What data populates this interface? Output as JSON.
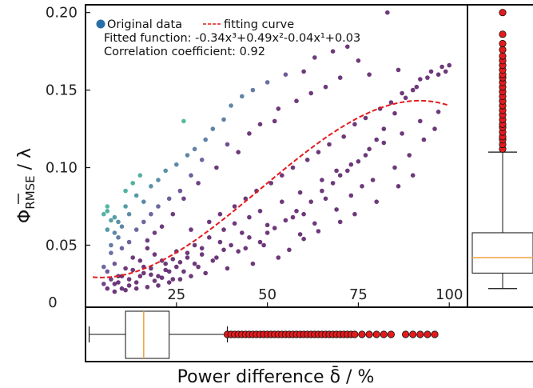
{
  "chart_data": {
    "type": "scatter",
    "xlabel": "Power difference δ̄ / %",
    "ylabel_main": "Φ",
    "ylabel_sub": "RMSE",
    "ylabel_tail": " / λ",
    "xlim": [
      0,
      105
    ],
    "ylim": [
      0.01,
      0.205
    ],
    "x_ticks": [
      25,
      50,
      75,
      100
    ],
    "y_ticks": [
      0.05,
      0.1,
      0.15,
      0.2
    ],
    "y_tick_labels": [
      "0.05",
      "0.10",
      "0.15",
      "0.20"
    ],
    "origin_label": "0",
    "legend": {
      "series_label": "Original data",
      "curve_label": "fitting curve",
      "fit_text": "Fitted function: -0.34x³+0.49x²-0.04x¹+0.03",
      "corr_text": "Correlation coefficient: 0.92"
    },
    "fit": {
      "coeffs": [
        -0.34,
        0.49,
        -0.04,
        0.03
      ],
      "x_scale": 100,
      "x_range": [
        2,
        100
      ]
    },
    "points": [
      [
        18,
        0.031
      ],
      [
        22,
        0.034
      ],
      [
        12,
        0.028
      ],
      [
        8,
        0.025
      ],
      [
        15,
        0.04
      ],
      [
        25,
        0.036
      ],
      [
        28,
        0.045
      ],
      [
        6,
        0.033
      ],
      [
        10,
        0.022
      ],
      [
        14,
        0.026
      ],
      [
        20,
        0.03
      ],
      [
        16,
        0.036
      ],
      [
        24,
        0.041
      ],
      [
        30,
        0.038
      ],
      [
        9,
        0.03
      ],
      [
        11,
        0.035
      ],
      [
        13,
        0.042
      ],
      [
        17,
        0.048
      ],
      [
        19,
        0.027
      ],
      [
        21,
        0.029
      ],
      [
        23,
        0.033
      ],
      [
        26,
        0.039
      ],
      [
        32,
        0.044
      ],
      [
        35,
        0.04
      ],
      [
        38,
        0.047
      ],
      [
        40,
        0.05
      ],
      [
        42,
        0.046
      ],
      [
        45,
        0.055
      ],
      [
        48,
        0.052
      ],
      [
        50,
        0.058
      ],
      [
        52,
        0.061
      ],
      [
        55,
        0.066
      ],
      [
        58,
        0.072
      ],
      [
        60,
        0.07
      ],
      [
        62,
        0.078
      ],
      [
        65,
        0.085
      ],
      [
        68,
        0.09
      ],
      [
        70,
        0.095
      ],
      [
        72,
        0.098
      ],
      [
        75,
        0.104
      ],
      [
        78,
        0.112
      ],
      [
        80,
        0.118
      ],
      [
        82,
        0.125
      ],
      [
        85,
        0.135
      ],
      [
        88,
        0.145
      ],
      [
        90,
        0.15
      ],
      [
        92,
        0.157
      ],
      [
        95,
        0.162
      ],
      [
        98,
        0.165
      ],
      [
        100,
        0.166
      ],
      [
        5,
        0.036
      ],
      [
        7,
        0.045
      ],
      [
        9,
        0.055
      ],
      [
        10,
        0.062
      ],
      [
        12,
        0.07
      ],
      [
        8,
        0.068
      ],
      [
        6,
        0.072
      ],
      [
        11,
        0.085
      ],
      [
        13,
        0.09
      ],
      [
        15,
        0.095
      ],
      [
        14,
        0.082
      ],
      [
        16,
        0.078
      ],
      [
        18,
        0.088
      ],
      [
        20,
        0.092
      ],
      [
        22,
        0.098
      ],
      [
        25,
        0.102
      ],
      [
        28,
        0.108
      ],
      [
        30,
        0.112
      ],
      [
        33,
        0.118
      ],
      [
        27,
        0.13
      ],
      [
        35,
        0.125
      ],
      [
        38,
        0.131
      ],
      [
        40,
        0.14
      ],
      [
        43,
        0.146
      ],
      [
        46,
        0.15
      ],
      [
        50,
        0.155
      ],
      [
        55,
        0.16
      ],
      [
        60,
        0.162
      ],
      [
        63,
        0.171
      ],
      [
        68,
        0.175
      ],
      [
        72,
        0.178
      ],
      [
        83,
        0.2
      ],
      [
        75,
        0.169
      ],
      [
        66,
        0.152
      ],
      [
        58,
        0.143
      ],
      [
        52,
        0.13
      ],
      [
        45,
        0.122
      ],
      [
        42,
        0.11
      ],
      [
        36,
        0.1
      ],
      [
        31,
        0.09
      ],
      [
        27,
        0.08
      ],
      [
        24,
        0.07
      ],
      [
        21,
        0.062
      ],
      [
        19,
        0.058
      ],
      [
        17,
        0.053
      ],
      [
        29,
        0.06
      ],
      [
        34,
        0.065
      ],
      [
        37,
        0.07
      ],
      [
        41,
        0.075
      ],
      [
        44,
        0.08
      ],
      [
        47,
        0.085
      ],
      [
        51,
        0.09
      ],
      [
        54,
        0.095
      ],
      [
        57,
        0.1
      ],
      [
        61,
        0.105
      ],
      [
        64,
        0.11
      ],
      [
        67,
        0.115
      ],
      [
        71,
        0.12
      ],
      [
        74,
        0.128
      ],
      [
        77,
        0.132
      ],
      [
        81,
        0.138
      ],
      [
        84,
        0.142
      ],
      [
        87,
        0.148
      ],
      [
        91,
        0.152
      ],
      [
        94,
        0.158
      ],
      [
        97,
        0.16
      ],
      [
        99,
        0.162
      ],
      [
        56,
        0.047
      ],
      [
        60,
        0.054
      ],
      [
        64,
        0.059
      ],
      [
        70,
        0.065
      ],
      [
        74,
        0.07
      ],
      [
        80,
        0.078
      ],
      [
        86,
        0.088
      ],
      [
        90,
        0.095
      ],
      [
        53,
        0.042
      ],
      [
        46,
        0.038
      ],
      [
        39,
        0.035
      ],
      [
        33,
        0.032
      ],
      [
        29,
        0.03
      ],
      [
        26,
        0.028
      ],
      [
        23,
        0.026
      ],
      [
        20,
        0.024
      ],
      [
        17,
        0.023
      ],
      [
        14,
        0.022
      ],
      [
        11,
        0.021
      ],
      [
        8,
        0.02
      ],
      [
        6,
        0.022
      ],
      [
        5,
        0.025
      ],
      [
        7,
        0.028
      ],
      [
        9,
        0.026
      ],
      [
        12,
        0.024
      ],
      [
        15,
        0.03
      ],
      [
        18,
        0.035
      ],
      [
        22,
        0.038
      ],
      [
        24,
        0.028
      ],
      [
        27,
        0.033
      ],
      [
        31,
        0.036
      ],
      [
        36,
        0.042
      ],
      [
        44,
        0.048
      ],
      [
        49,
        0.05
      ],
      [
        59,
        0.057
      ],
      [
        63,
        0.064
      ],
      [
        69,
        0.073
      ],
      [
        73,
        0.082
      ],
      [
        79,
        0.092
      ],
      [
        85,
        0.1
      ],
      [
        89,
        0.108
      ],
      [
        93,
        0.118
      ],
      [
        96,
        0.125
      ],
      [
        76,
        0.088
      ],
      [
        66,
        0.08
      ],
      [
        57,
        0.068
      ],
      [
        50,
        0.063
      ],
      [
        43,
        0.058
      ],
      [
        37,
        0.052
      ],
      [
        32,
        0.048
      ],
      [
        28,
        0.042
      ],
      [
        25,
        0.046
      ],
      [
        21,
        0.04
      ],
      [
        19,
        0.044
      ],
      [
        16,
        0.032
      ],
      [
        13,
        0.034
      ],
      [
        10,
        0.03
      ],
      [
        8,
        0.038
      ],
      [
        7,
        0.05
      ],
      [
        9,
        0.065
      ],
      [
        11,
        0.075
      ],
      [
        6,
        0.06
      ],
      [
        7,
        0.066
      ],
      [
        5,
        0.07
      ],
      [
        6,
        0.075
      ],
      [
        8,
        0.058
      ],
      [
        10,
        0.048
      ],
      [
        12,
        0.052
      ],
      [
        14,
        0.06
      ],
      [
        16,
        0.065
      ],
      [
        18,
        0.07
      ],
      [
        20,
        0.075
      ],
      [
        23,
        0.08
      ],
      [
        26,
        0.085
      ],
      [
        29,
        0.095
      ],
      [
        32,
        0.105
      ],
      [
        39,
        0.115
      ],
      [
        48,
        0.128
      ],
      [
        53,
        0.138
      ],
      [
        62,
        0.148
      ],
      [
        70,
        0.158
      ],
      [
        78,
        0.16
      ],
      [
        86,
        0.163
      ],
      [
        30,
        0.05
      ],
      [
        34,
        0.055
      ],
      [
        38,
        0.06
      ],
      [
        41,
        0.064
      ],
      [
        45,
        0.068
      ],
      [
        48,
        0.072
      ],
      [
        54,
        0.078
      ],
      [
        59,
        0.084
      ],
      [
        65,
        0.092
      ],
      [
        69,
        0.098
      ],
      [
        73,
        0.102
      ],
      [
        77,
        0.108
      ],
      [
        82,
        0.116
      ],
      [
        87,
        0.122
      ],
      [
        92,
        0.13
      ],
      [
        97,
        0.136
      ]
    ],
    "box_y": {
      "whisker_low": 0.022,
      "q1": 0.032,
      "median": 0.042,
      "q3": 0.058,
      "whisker_high": 0.11,
      "outliers": [
        0.112,
        0.115,
        0.118,
        0.12,
        0.123,
        0.126,
        0.128,
        0.131,
        0.134,
        0.137,
        0.14,
        0.143,
        0.146,
        0.149,
        0.152,
        0.155,
        0.158,
        0.16,
        0.163,
        0.166,
        0.169,
        0.172,
        0.176,
        0.18,
        0.186,
        0.2
      ]
    },
    "box_x": {
      "whisker_low": 1,
      "q1": 11,
      "median": 16,
      "q3": 23,
      "whisker_high": 39,
      "outliers": [
        39,
        40,
        41,
        42,
        43,
        44,
        45,
        46,
        47,
        48,
        49,
        50,
        51,
        52,
        53,
        54,
        55,
        56,
        57,
        58,
        59,
        60,
        61,
        62,
        63,
        64,
        65,
        66,
        67,
        68,
        69,
        70,
        71,
        72,
        73,
        74,
        76,
        78,
        80,
        82,
        84,
        88,
        90,
        92,
        94,
        96
      ]
    },
    "colors": {
      "fit_curve": "#e41a1c",
      "outlier_fill": "#e41a1c",
      "median_line": "#f0a040",
      "legend_marker": "#2a6ea8",
      "axis": "#111111"
    }
  }
}
